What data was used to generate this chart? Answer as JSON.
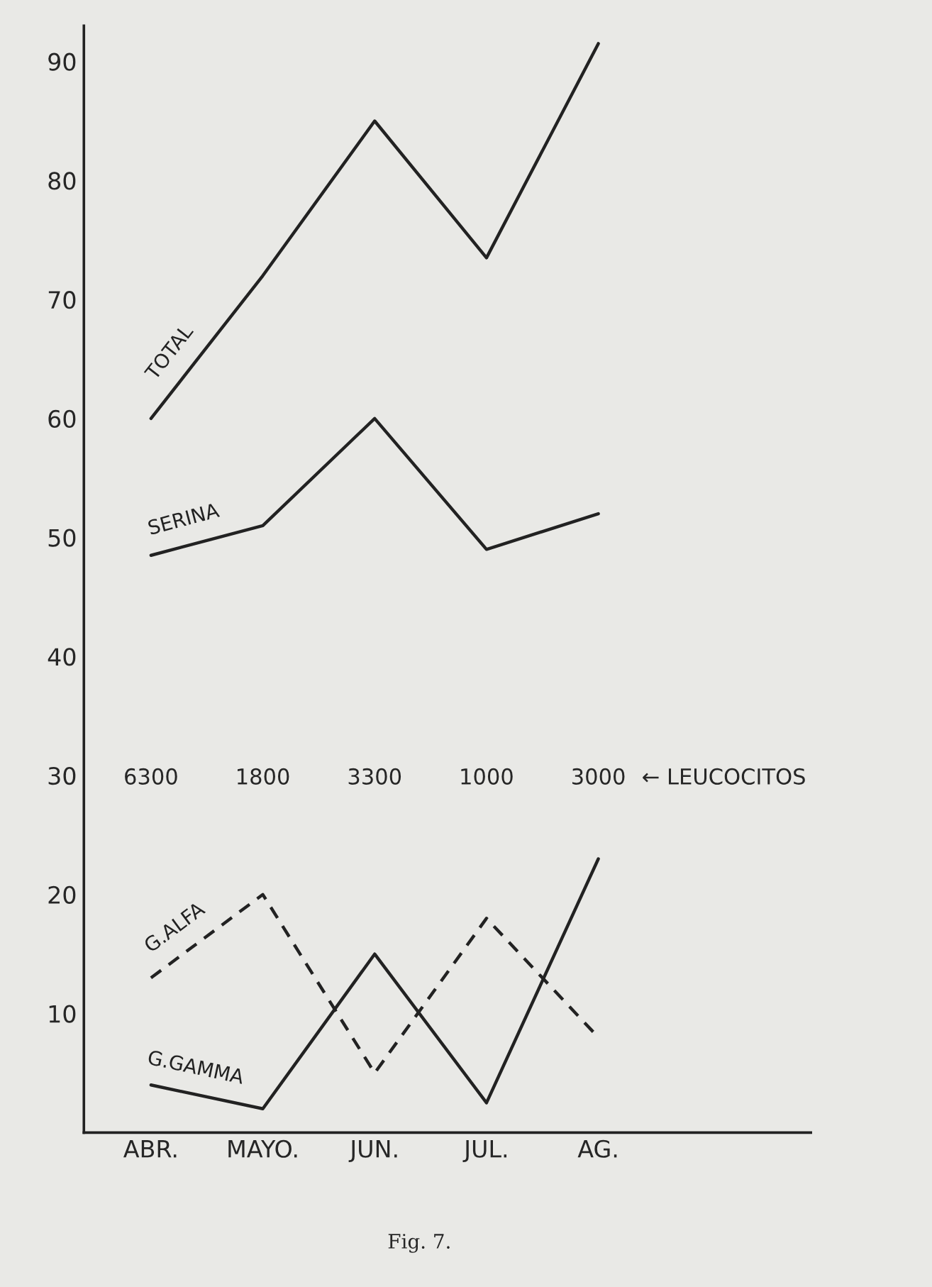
{
  "chart_data": {
    "type": "line",
    "categories": [
      "ABR.",
      "MAYO.",
      "JUN.",
      "JUL.",
      "AG."
    ],
    "series": [
      {
        "name": "TOTAL",
        "color": "#222222",
        "line_style": "solid",
        "values": [
          60,
          72,
          85,
          73.5,
          91.5
        ]
      },
      {
        "name": "SERINA",
        "color": "#222222",
        "line_style": "solid",
        "values": [
          48.5,
          51,
          60,
          49,
          52
        ]
      },
      {
        "name": "G.ALFA",
        "color": "#222222",
        "line_style": "dashed",
        "values": [
          13,
          20,
          5,
          18,
          8
        ]
      },
      {
        "name": "G.GAMMA",
        "color": "#222222",
        "line_style": "solid",
        "values": [
          4,
          2,
          15,
          2.5,
          23
        ]
      }
    ],
    "ylim": [
      0,
      93
    ],
    "yticks": [
      10,
      20,
      30,
      40,
      50,
      60,
      70,
      80,
      90
    ],
    "grid": false,
    "legend": false,
    "marker": "none",
    "annotations": [
      "6300",
      "1800",
      "3300",
      "1000",
      "3000",
      "← LEUCOCITOS",
      "Fig. 7."
    ]
  }
}
